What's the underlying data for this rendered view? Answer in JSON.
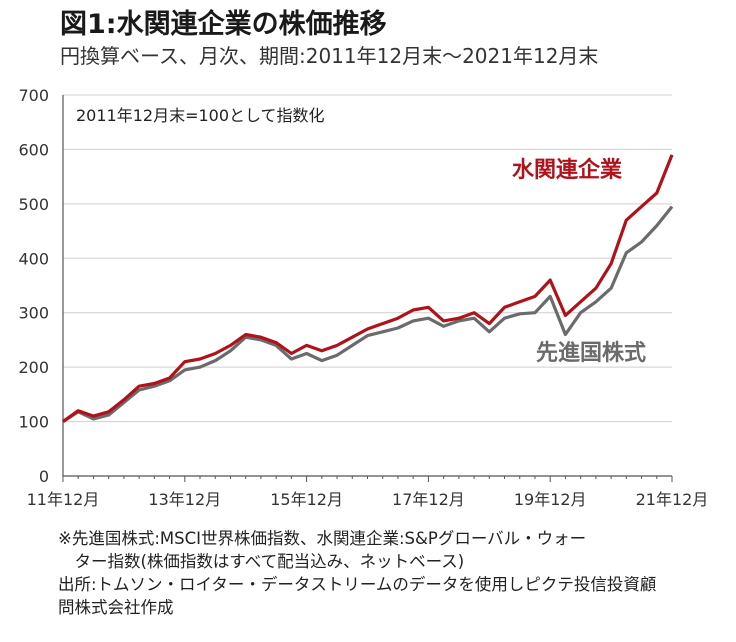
{
  "header": {
    "title": "図1:水関連企業の株価推移",
    "subtitle": "円換算ベース、月次、期間:2011年12月末～2021年12月末"
  },
  "footnotes": {
    "note_line1": "※先進国株式:MSCI世界株価指数、水関連企業:S&Pグローバル・ウォー",
    "note_line2": "　ター指数(株価指数はすべて配当込み、ネットベース)",
    "source_line1": "出所:トムソン・ロイター・データストリームのデータを使用しピクテ投信投資顧",
    "source_line2": "問株式会社作成"
  },
  "colors": {
    "water": "#b0121b",
    "developed": "#6b6b6b",
    "grid": "#cfcfcf",
    "axis": "#555555"
  },
  "chart_data": {
    "type": "line",
    "annotation": "2011年12月末=100として指数化",
    "x": [
      "11年12月",
      "12年3月",
      "12年6月",
      "12年9月",
      "12年12月",
      "13年3月",
      "13年6月",
      "13年9月",
      "13年12月",
      "14年3月",
      "14年6月",
      "14年9月",
      "14年12月",
      "15年3月",
      "15年6月",
      "15年9月",
      "15年12月",
      "16年3月",
      "16年6月",
      "16年9月",
      "16年12月",
      "17年3月",
      "17年6月",
      "17年9月",
      "17年12月",
      "18年3月",
      "18年6月",
      "18年9月",
      "18年12月",
      "19年3月",
      "19年6月",
      "19年9月",
      "19年12月",
      "20年3月",
      "20年6月",
      "20年9月",
      "20年12月",
      "21年3月",
      "21年6月",
      "21年9月",
      "21年12月"
    ],
    "xtick_labels": [
      "11年12月",
      "13年12月",
      "15年12月",
      "17年12月",
      "19年12月",
      "21年12月"
    ],
    "ylim": [
      0,
      700
    ],
    "yticks": [
      0,
      100,
      200,
      300,
      400,
      500,
      600,
      700
    ],
    "series": [
      {
        "name": "水関連企業",
        "color": "#b0121b",
        "values": [
          100,
          120,
          110,
          118,
          140,
          165,
          170,
          180,
          210,
          215,
          225,
          240,
          260,
          255,
          245,
          225,
          240,
          230,
          240,
          255,
          270,
          280,
          290,
          305,
          310,
          285,
          290,
          300,
          280,
          310,
          320,
          330,
          360,
          295,
          320,
          345,
          390,
          470,
          495,
          520,
          590
        ]
      },
      {
        "name": "先進国株式",
        "color": "#6b6b6b",
        "values": [
          100,
          118,
          105,
          112,
          135,
          158,
          165,
          175,
          195,
          200,
          212,
          230,
          255,
          250,
          240,
          215,
          225,
          212,
          222,
          240,
          258,
          265,
          272,
          285,
          290,
          275,
          285,
          290,
          265,
          290,
          298,
          300,
          330,
          260,
          300,
          320,
          345,
          410,
          430,
          460,
          495
        ]
      }
    ]
  }
}
